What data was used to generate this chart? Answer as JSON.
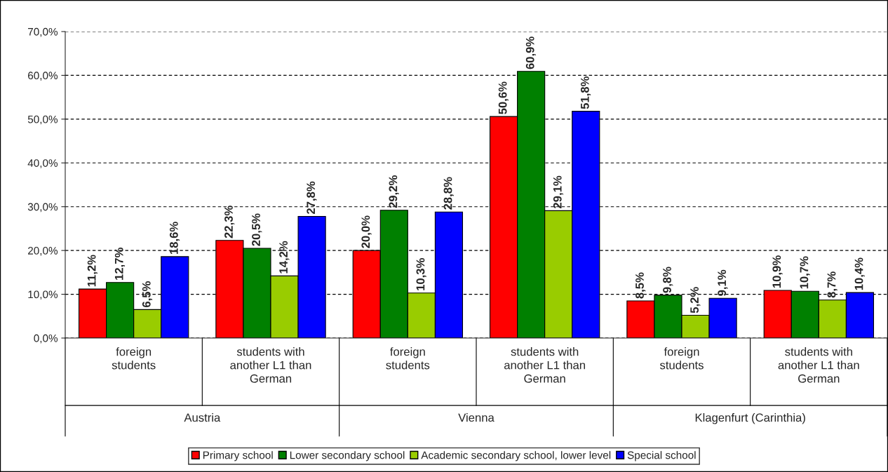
{
  "chart_data": {
    "type": "bar",
    "categories": [
      "foreign students",
      "students with another L1 than German",
      "foreign students",
      "students with another L1 than German",
      "foreign students",
      "students with another L1 than German"
    ],
    "annotations": [
      "Austria",
      "Vienna",
      "Klagenfurt (Carinthia)"
    ],
    "series": [
      {
        "name": "Primary school",
        "color": "#ff0000",
        "values": [
          11.2,
          22.3,
          20.0,
          50.6,
          8.5,
          10.9
        ],
        "value_labels": [
          "11,2%",
          "22,3%",
          "20,0%",
          "50,6%",
          "8,5%",
          "10,9%"
        ]
      },
      {
        "name": "Lower secondary school",
        "color": "#008000",
        "values": [
          12.7,
          20.5,
          29.2,
          60.9,
          9.8,
          10.7
        ],
        "value_labels": [
          "12,7%",
          "20,5%",
          "29,2%",
          "60,9%",
          "9,8%",
          "10,7%"
        ]
      },
      {
        "name": "Academic secondary school, lower level",
        "color": "#99cc00",
        "values": [
          6.5,
          14.2,
          10.3,
          29.1,
          5.2,
          8.7
        ],
        "value_labels": [
          "6,5%",
          "14,2%",
          "10,3%",
          "29,1%",
          "5,2%",
          "8,7%"
        ]
      },
      {
        "name": "Special school",
        "color": "#0000ff",
        "values": [
          18.6,
          27.8,
          28.8,
          51.8,
          9.1,
          10.4
        ],
        "value_labels": [
          "18,6%",
          "27,8%",
          "28,8%",
          "51,8%",
          "9,1%",
          "10,4%"
        ]
      }
    ],
    "ylim": [
      0,
      70
    ],
    "yticks": [
      {
        "value": 0,
        "label": "0,0%"
      },
      {
        "value": 10,
        "label": "10,0%"
      },
      {
        "value": 20,
        "label": "20,0%"
      },
      {
        "value": 30,
        "label": "30,0%"
      },
      {
        "value": 40,
        "label": "40,0%"
      },
      {
        "value": 50,
        "label": "50,0%"
      },
      {
        "value": 60,
        "label": "60,0%"
      },
      {
        "value": 70,
        "label": "70,0%"
      }
    ],
    "grid": "y",
    "legend": "bottom"
  }
}
